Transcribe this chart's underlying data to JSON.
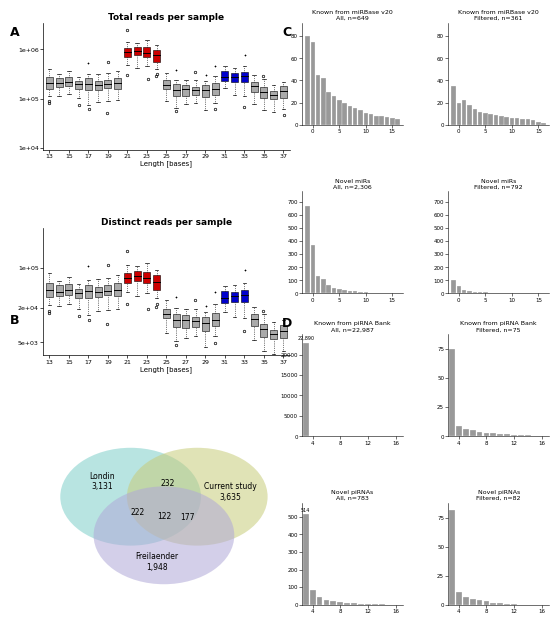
{
  "panel_A_top_title": "Total reads per sample",
  "panel_A_bot_title": "Distinct reads per sample",
  "panel_A_xlabel": "Length [bases]",
  "lengths": [
    13,
    14,
    15,
    16,
    17,
    18,
    19,
    20,
    21,
    22,
    23,
    24,
    25,
    26,
    27,
    28,
    29,
    30,
    31,
    32,
    33,
    34,
    35,
    36,
    37
  ],
  "red_lengths": [
    21,
    22,
    23,
    24
  ],
  "blue_lengths": [
    31,
    32,
    33
  ],
  "panel_C_titles": [
    [
      "Known from miRBase v20\nAll, n=649",
      "Known from miRBase v20\nFiltered, n=361"
    ],
    [
      "Novel miRs\nAll, n=2,306",
      "Novel miRs\nFiltered, n=792"
    ]
  ],
  "panel_D_titles": [
    [
      "Known from piRNA Bank\nAll, n=22,987",
      "Known from piRNA Bank\nFiltered, n=75"
    ],
    [
      "Novel piRNAs\nAll, n=783",
      "Novel piRNAs\nFiltered, n=82"
    ]
  ],
  "venn_labels": [
    "Londin\n3,131",
    "Current study\n3,635",
    "Freilaender\n1,948"
  ],
  "venn_intersections": [
    "232",
    "122",
    "222",
    "177"
  ],
  "venn_colors": [
    "#7ecfca",
    "#c8cc7a",
    "#b0a8d8"
  ],
  "box_color_red": "#cc0000",
  "box_color_blue": "#0000cc",
  "box_color_gray": "#aaaaaa",
  "total_scales": [
    200000.0,
    200000.0,
    220000.0,
    210000.0,
    210000.0,
    200000.0,
    210000.0,
    220000.0,
    900000.0,
    950000.0,
    900000.0,
    800000.0,
    180000.0,
    160000.0,
    150000.0,
    140000.0,
    150000.0,
    150000.0,
    280000.0,
    270000.0,
    300000.0,
    170000.0,
    130000.0,
    120000.0,
    140000.0
  ],
  "distinct_scales": [
    40000.0,
    38000.0,
    42000.0,
    40000.0,
    42000.0,
    41000.0,
    43000.0,
    45000.0,
    70000.0,
    75000.0,
    70000.0,
    60000.0,
    15000.0,
    13000.0,
    12000.0,
    11000.0,
    11000.0,
    12000.0,
    30000.0,
    32000.0,
    35000.0,
    12000.0,
    8000.0,
    7000.0,
    8000.0
  ]
}
